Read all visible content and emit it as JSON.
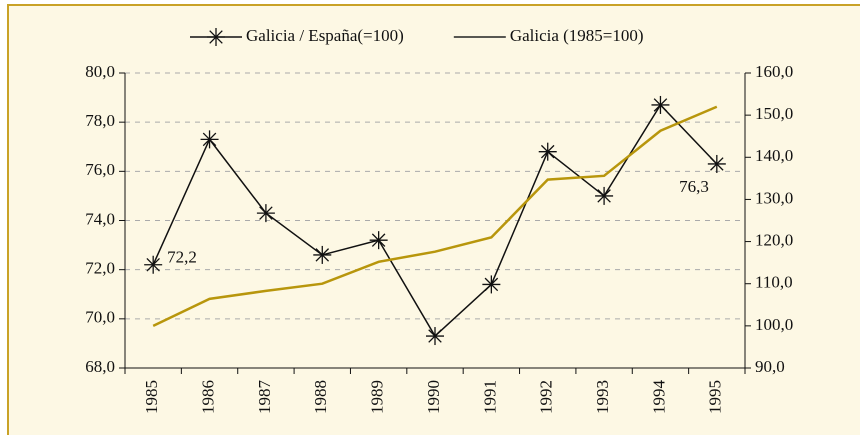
{
  "chart_data": {
    "type": "line",
    "categories": [
      "1985",
      "1986",
      "1987",
      "1988",
      "1989",
      "1990",
      "1991",
      "1992",
      "1993",
      "1994",
      "1995"
    ],
    "series": [
      {
        "name": "Galicia / España(=100)",
        "color": "#111111",
        "marker": "asterisk",
        "values": [
          72.2,
          77.3,
          74.3,
          72.6,
          73.2,
          69.3,
          71.4,
          76.8,
          75.0,
          78.7,
          76.3
        ],
        "value_labels": [
          "72,2",
          null,
          null,
          null,
          null,
          null,
          null,
          null,
          null,
          null,
          "76,3"
        ]
      },
      {
        "name": "Galicia (1985=100)",
        "color": "#b8960c",
        "axis": "y2",
        "values": [
          100,
          106.4,
          108.3,
          110,
          115.2,
          117.6,
          121,
          134.7,
          135.6,
          146.3,
          152
        ]
      }
    ],
    "ylim": [
      68,
      80
    ],
    "yticks": [
      {
        "value": 68,
        "label": "68,0"
      },
      {
        "value": 70,
        "label": "70,0"
      },
      {
        "value": 72,
        "label": "72,0"
      },
      {
        "value": 74,
        "label": "74,0"
      },
      {
        "value": 76,
        "label": "76,0"
      },
      {
        "value": 78,
        "label": "78,0"
      },
      {
        "value": 80,
        "label": "80,0"
      }
    ],
    "y2lim": [
      90,
      160
    ],
    "y2ticks": [
      {
        "value": 90,
        "label": "90,0"
      },
      {
        "value": 100,
        "label": "100,0"
      },
      {
        "value": 110,
        "label": "110,0"
      },
      {
        "value": 120,
        "label": "120,0"
      },
      {
        "value": 130,
        "label": "130,0"
      },
      {
        "value": 140,
        "label": "140,0"
      },
      {
        "value": 150,
        "label": "150,0"
      },
      {
        "value": 160,
        "label": "160,0"
      }
    ],
    "grid": true,
    "legend": "top"
  }
}
